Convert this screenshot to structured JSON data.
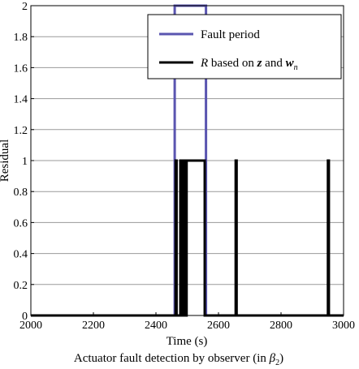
{
  "chart_data": {
    "type": "line",
    "xlabel": "Time (s)",
    "ylabel": "Residual",
    "caption_main": "Actuator fault detection by observer (in ",
    "caption_symbol": "β",
    "caption_sub": "2",
    "caption_end": ")",
    "xlim": [
      2000,
      3000
    ],
    "ylim": [
      0,
      2
    ],
    "xticks": [
      2000,
      2200,
      2400,
      2600,
      2800,
      3000
    ],
    "yticks": [
      0,
      0.2,
      0.4,
      0.6,
      0.8,
      1,
      1.2,
      1.4,
      1.6,
      1.8,
      2
    ],
    "xtick_labels": [
      "2000",
      "2200",
      "2400",
      "2600",
      "2800",
      "3000"
    ],
    "ytick_labels": [
      "0",
      "0.2",
      "0.4",
      "0.6",
      "0.8",
      "1",
      "1.2",
      "1.4",
      "1.6",
      "1.8",
      "2"
    ],
    "grid": "horizontal",
    "legend_placement": "top-right",
    "series": [
      {
        "name": "Fault period",
        "color": "#5a55b0",
        "x": [
          2000,
          2460,
          2460,
          2560,
          2560,
          3000
        ],
        "y": [
          0,
          0,
          2,
          2,
          0,
          0
        ]
      },
      {
        "legend_parts": [
          {
            "text": "R",
            "style": "italic"
          },
          {
            "text": " based on ",
            "style": "normal"
          },
          {
            "text": "z",
            "style": "bold-italic"
          },
          {
            "text": " and ",
            "style": "normal"
          },
          {
            "text": "w",
            "style": "bold-italic"
          },
          {
            "text": "n",
            "style": "subscript"
          }
        ],
        "color": "#000000",
        "x": [
          2000,
          2463,
          2463,
          2466,
          2466,
          2478,
          2478,
          2481,
          2481,
          2483,
          2483,
          2487,
          2487,
          2490,
          2490,
          2493,
          2493,
          2498,
          2498,
          2556,
          2556,
          2655,
          2655,
          2658,
          2658,
          2950,
          2950,
          2953,
          2953,
          3000
        ],
        "y": [
          0,
          0,
          1,
          1,
          0,
          0,
          1,
          1,
          0,
          0,
          1,
          1,
          0,
          0,
          1,
          1,
          0,
          0,
          1,
          1,
          0,
          0,
          1,
          1,
          0,
          0,
          1,
          1,
          0,
          0
        ]
      }
    ]
  }
}
